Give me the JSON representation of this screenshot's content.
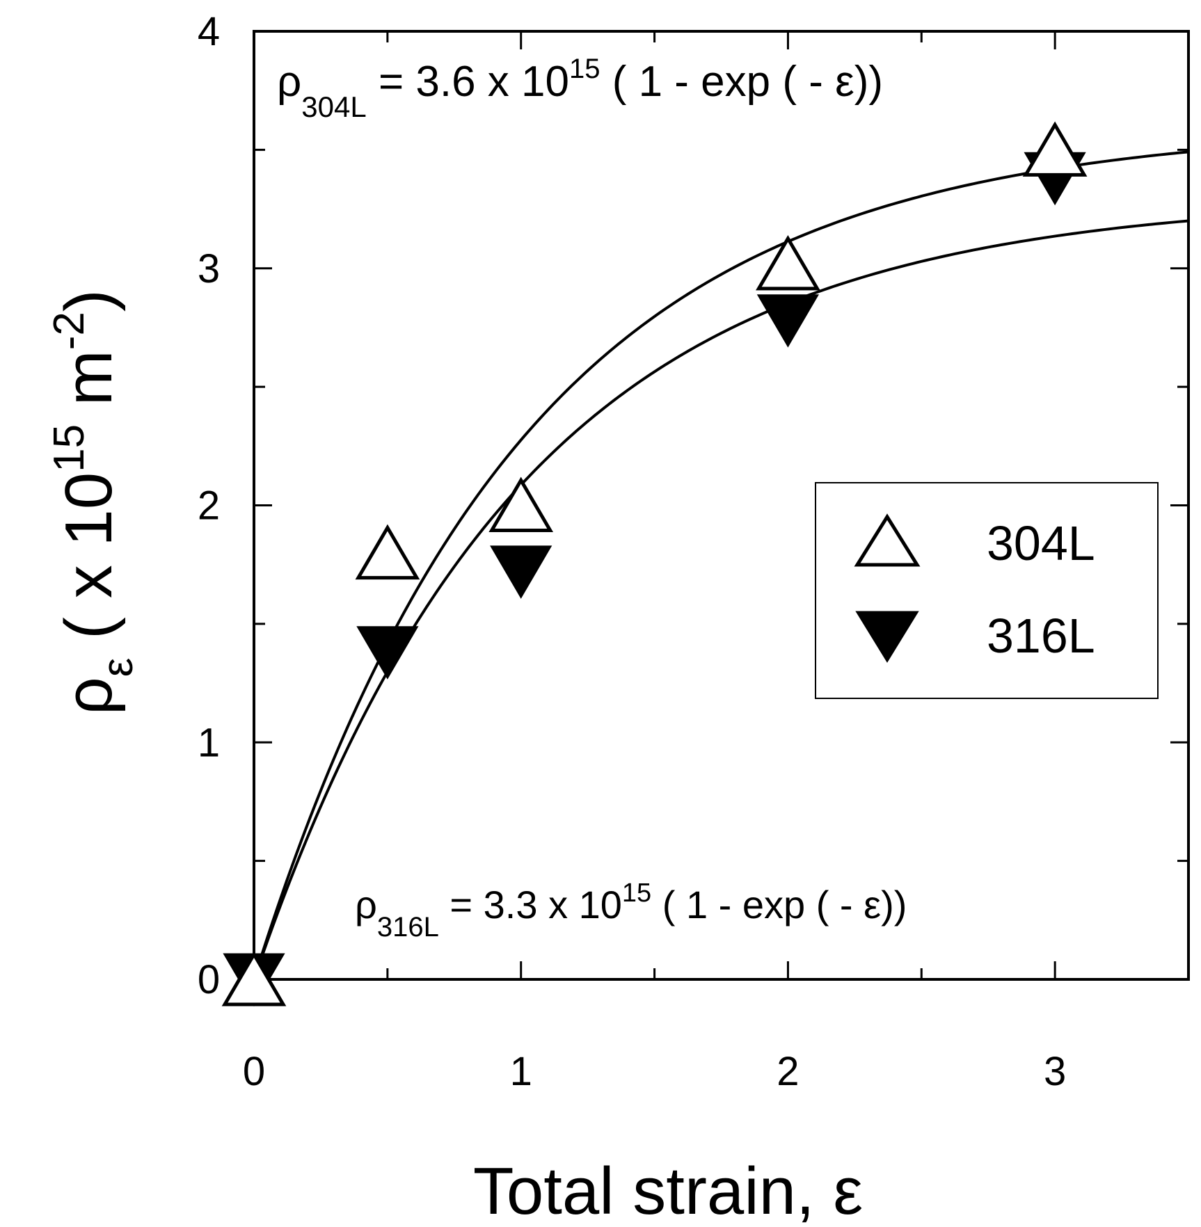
{
  "chart_data": {
    "type": "scatter",
    "xlabel": "Total strain, ε",
    "ylabel_parts": {
      "rho": "ρ",
      "sub": "ε",
      "open": " ( x 10",
      "exp": "15",
      "unit": " m",
      "unit_exp": "-2",
      "close": ")"
    },
    "xlim": [
      0,
      3.5
    ],
    "ylim": [
      0,
      4
    ],
    "x_ticks": [
      0,
      1,
      2,
      3
    ],
    "y_ticks": [
      0,
      1,
      2,
      3,
      4
    ],
    "x_minor_ticks": [
      0.5,
      1.5,
      2.5
    ],
    "y_minor_ticks": [
      0.5,
      1.5,
      2.5,
      3.5
    ],
    "legend_position": "center-right",
    "series": [
      {
        "name": "304L",
        "marker": "open-triangle-up",
        "x": [
          0,
          0.5,
          1,
          2,
          3
        ],
        "y": [
          0,
          1.8,
          2.0,
          3.02,
          3.5
        ],
        "fit": {
          "a": 3.6
        }
      },
      {
        "name": "316L",
        "marker": "filled-triangle-down",
        "x": [
          0,
          0.5,
          1,
          2,
          3
        ],
        "y": [
          0,
          1.38,
          1.72,
          2.78,
          3.38
        ],
        "fit": {
          "a": 3.3
        }
      }
    ],
    "annotations": [
      {
        "rho": "ρ",
        "sub": "304L",
        "pre": " = 3.6 x 10",
        "exp": "15",
        "post": " ( 1 - exp ( - ε))",
        "place": "top-left"
      },
      {
        "rho": "ρ",
        "sub": "316L",
        "pre": " = 3.3 x 10",
        "exp": "15",
        "post": " ( 1 - exp ( - ε))",
        "place": "bottom"
      }
    ]
  }
}
